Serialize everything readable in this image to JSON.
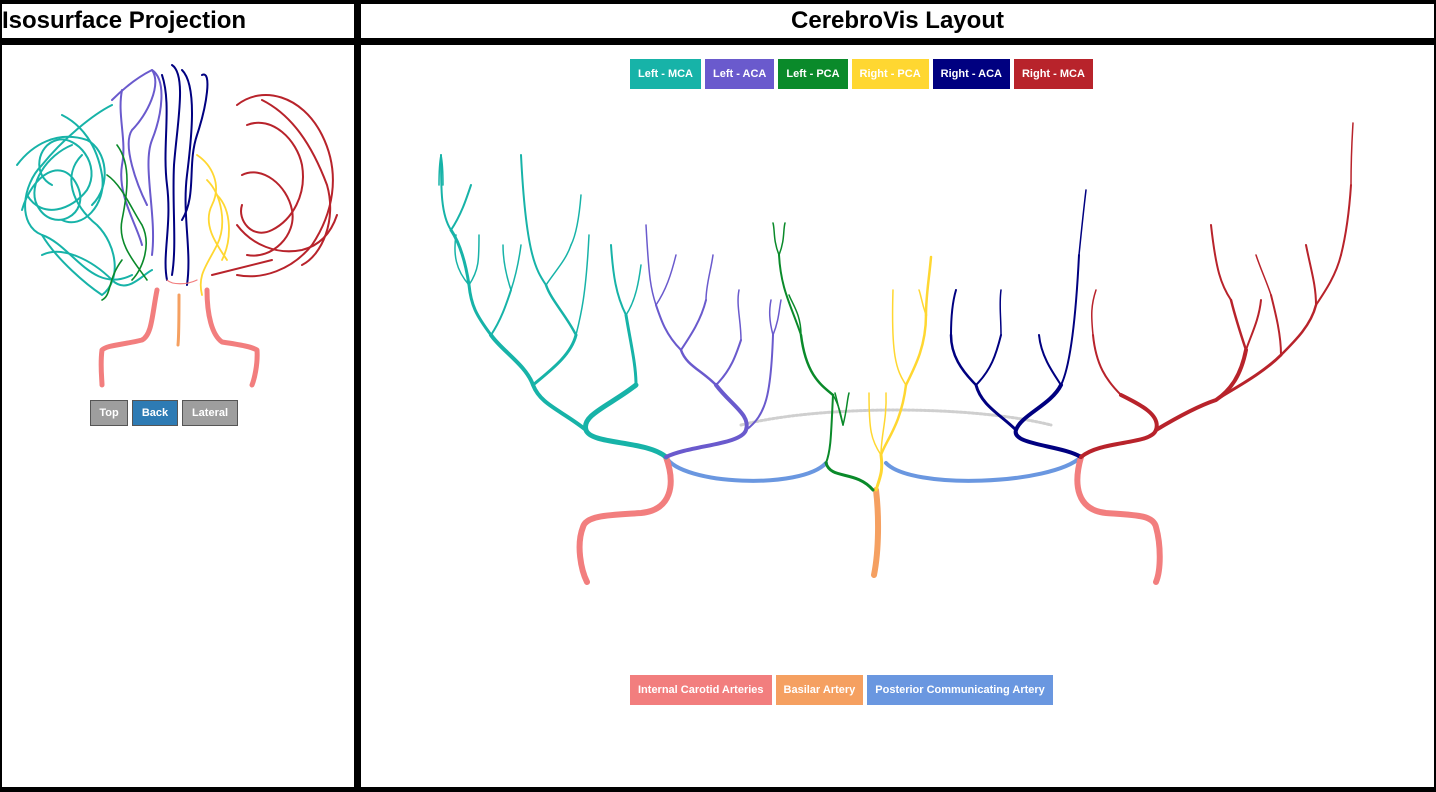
{
  "left_panel": {
    "title": "Isosurface Projection",
    "view_buttons": [
      {
        "label": "Top",
        "color": "#9e9e9e"
      },
      {
        "label": "Back",
        "color": "#2e7bb4"
      },
      {
        "label": "Lateral",
        "color": "#9e9e9e"
      }
    ]
  },
  "right_panel": {
    "title": "CerebroVis Layout",
    "legend_top": [
      {
        "label": "Left - MCA",
        "color": "#17b3a8"
      },
      {
        "label": "Left - ACA",
        "color": "#6a5acd"
      },
      {
        "label": "Left - PCA",
        "color": "#0a8a2a"
      },
      {
        "label": "Right - PCA",
        "color": "#ffd731"
      },
      {
        "label": "Right - ACA",
        "color": "#000080"
      },
      {
        "label": "Right - MCA",
        "color": "#b8232b"
      }
    ],
    "legend_bottom": [
      {
        "label": "Internal Carotid Arteries",
        "color": "#f27e7e"
      },
      {
        "label": "Basilar Artery",
        "color": "#f5a061"
      },
      {
        "label": "Posterior Communicating Artery",
        "color": "#6a97e0"
      }
    ]
  }
}
